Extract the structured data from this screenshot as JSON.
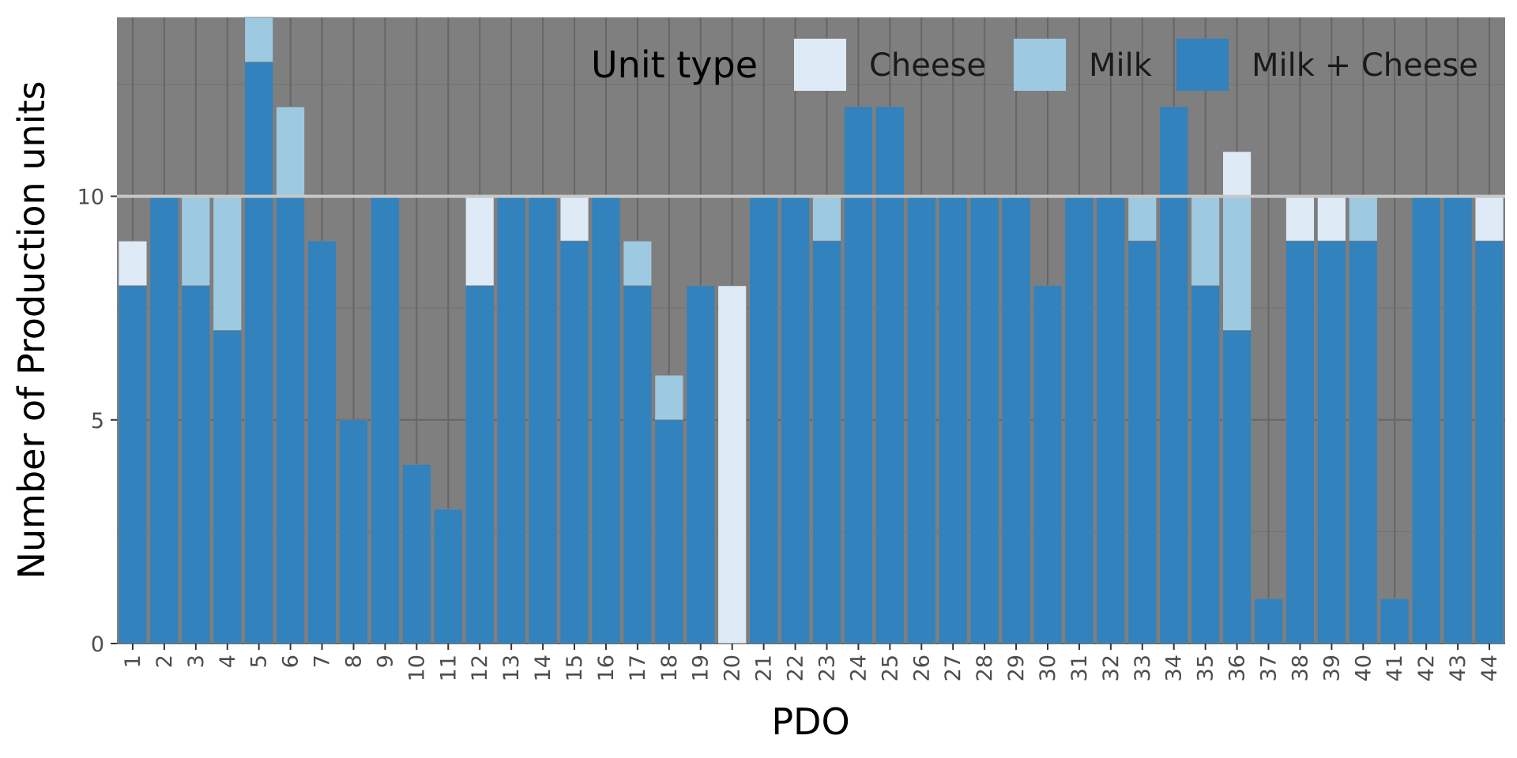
{
  "chart_data": {
    "type": "bar",
    "stacked": true,
    "xlabel": "PDO",
    "ylabel": "Number of Production units",
    "ylim": [
      0,
      14
    ],
    "yticks": [
      0,
      5,
      10
    ],
    "reference_line": 10,
    "grid": true,
    "legend": {
      "title": "Unit type",
      "position": "top-right",
      "entries": [
        "Cheese",
        "Milk",
        "Milk + Cheese"
      ]
    },
    "categories": [
      "1",
      "2",
      "3",
      "4",
      "5",
      "6",
      "7",
      "8",
      "9",
      "10",
      "11",
      "12",
      "13",
      "14",
      "15",
      "16",
      "17",
      "18",
      "19",
      "20",
      "21",
      "22",
      "23",
      "24",
      "25",
      "26",
      "27",
      "28",
      "29",
      "30",
      "31",
      "32",
      "33",
      "34",
      "35",
      "36",
      "37",
      "38",
      "39",
      "40",
      "41",
      "42",
      "43",
      "44"
    ],
    "series": [
      {
        "name": "Milk + Cheese",
        "color": "#3182bd",
        "values": [
          8,
          10,
          8,
          7,
          13,
          10,
          9,
          5,
          10,
          4,
          3,
          8,
          10,
          10,
          9,
          10,
          8,
          5,
          8,
          0,
          10,
          10,
          9,
          12,
          12,
          10,
          10,
          10,
          10,
          8,
          10,
          10,
          9,
          12,
          8,
          7,
          1,
          9,
          9,
          9,
          1,
          10,
          10,
          9
        ]
      },
      {
        "name": "Milk",
        "color": "#9ecae1",
        "values": [
          0,
          0,
          2,
          3,
          1,
          2,
          0,
          0,
          0,
          0,
          0,
          0,
          0,
          0,
          0,
          0,
          1,
          1,
          0,
          0,
          0,
          0,
          1,
          0,
          0,
          0,
          0,
          0,
          0,
          0,
          0,
          0,
          1,
          0,
          2,
          3,
          0,
          0,
          0,
          1,
          0,
          0,
          0,
          0
        ]
      },
      {
        "name": "Cheese",
        "color": "#deebf7",
        "values": [
          1,
          0,
          0,
          0,
          0,
          0,
          0,
          0,
          0,
          0,
          0,
          2,
          0,
          0,
          1,
          0,
          0,
          0,
          0,
          8,
          0,
          0,
          0,
          0,
          0,
          0,
          0,
          0,
          0,
          0,
          0,
          0,
          0,
          0,
          0,
          1,
          0,
          1,
          1,
          0,
          0,
          0,
          0,
          1
        ]
      }
    ],
    "colors": {
      "panel_background": "#7f7f7f",
      "grid_major": "#666666",
      "grid_minor": "#737373",
      "reference_line": "#c8c8c8",
      "bar_border": "#7f7f7f"
    }
  }
}
